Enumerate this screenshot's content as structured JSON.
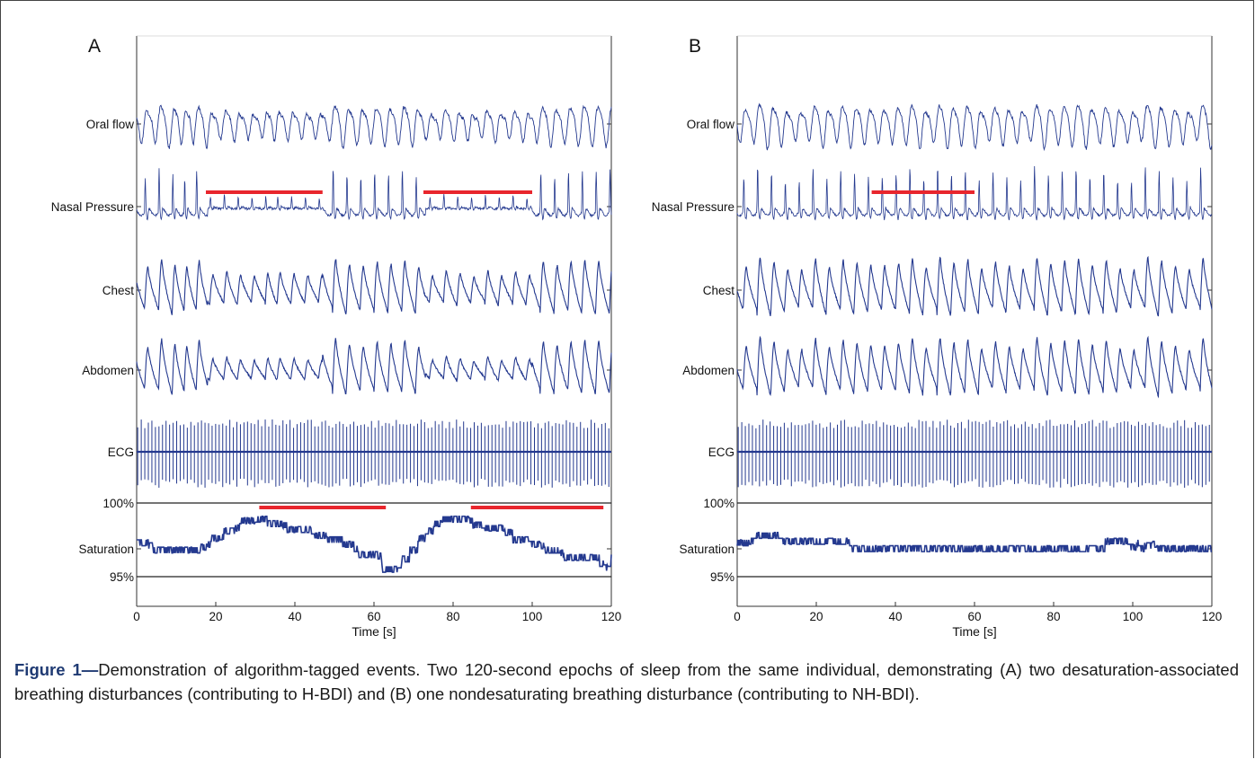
{
  "figure": {
    "caption_label": "Figure 1—",
    "caption_text": "Demonstration of algorithm-tagged events. Two 120-second epochs of sleep from the same individual, demonstrating (A) two desaturation-associated breathing disturbances (contributing to H-BDI) and (B) one nondesaturating breathing disturbance (contributing to NH-BDI).",
    "colors": {
      "signal": "#24398f",
      "event": "#e8262d",
      "axis": "#333333",
      "reference_line": "#222222"
    }
  },
  "chart_data": [
    {
      "type": "line",
      "panel_label": "A",
      "xlabel": "Time [s]",
      "xlim": [
        0,
        120
      ],
      "xticks": [
        0,
        20,
        40,
        60,
        80,
        100,
        120
      ],
      "channels": [
        "Oral flow",
        "Nasal Pressure",
        "Chest",
        "Abdomen",
        "ECG",
        "Saturation"
      ],
      "saturation_labels": {
        "top": "100%",
        "bottom": "95%"
      },
      "nasal_events": [
        {
          "start": 17.5,
          "end": 47
        },
        {
          "start": 72.5,
          "end": 100
        }
      ],
      "saturation_events": [
        {
          "start": 31,
          "end": 63
        },
        {
          "start": 84.5,
          "end": 118
        }
      ],
      "breath_times": [
        2,
        5.5,
        9,
        12,
        15,
        18.5,
        22,
        25.5,
        29,
        32.5,
        35.5,
        39,
        42.5,
        46,
        49.5,
        53,
        56.5,
        60,
        63.5,
        67,
        70.5,
        74,
        77.5,
        81,
        84.5,
        88,
        91.5,
        95,
        98.5,
        102,
        105.5,
        109,
        112.5,
        116,
        119.5
      ],
      "reduced_amplitude_windows": [
        {
          "start": 18,
          "end": 47
        },
        {
          "start": 73,
          "end": 100
        }
      ],
      "saturation_percent": [
        [
          0,
          97.3
        ],
        [
          3,
          97.1
        ],
        [
          4,
          96.8
        ],
        [
          15,
          96.8
        ],
        [
          16,
          97.0
        ],
        [
          18,
          97.2
        ],
        [
          19,
          97.6
        ],
        [
          21,
          97.7
        ],
        [
          22,
          98.1
        ],
        [
          25,
          98.3
        ],
        [
          26,
          98.8
        ],
        [
          30,
          98.9
        ],
        [
          33,
          98.6
        ],
        [
          37,
          98.5
        ],
        [
          38,
          98.2
        ],
        [
          44,
          98.1
        ],
        [
          45,
          97.8
        ],
        [
          48,
          97.5
        ],
        [
          52,
          97.2
        ],
        [
          55,
          96.9
        ],
        [
          56,
          96.5
        ],
        [
          61,
          96.4
        ],
        [
          62,
          95.5
        ],
        [
          66,
          95.4
        ],
        [
          67,
          96.2
        ],
        [
          69,
          96.8
        ],
        [
          71,
          97.6
        ],
        [
          73,
          98.1
        ],
        [
          75,
          98.6
        ],
        [
          77,
          98.9
        ],
        [
          80,
          98.9
        ],
        [
          84,
          98.8
        ],
        [
          85,
          98.5
        ],
        [
          88,
          98.3
        ],
        [
          93,
          98.0
        ],
        [
          95,
          97.5
        ],
        [
          99,
          97.2
        ],
        [
          102,
          97.1
        ],
        [
          103,
          96.8
        ],
        [
          107,
          96.6
        ],
        [
          108,
          96.3
        ],
        [
          117,
          95.9
        ],
        [
          118,
          95.6
        ],
        [
          119,
          95.9
        ],
        [
          120,
          96.3
        ]
      ]
    },
    {
      "type": "line",
      "panel_label": "B",
      "xlabel": "Time [s]",
      "xlim": [
        0,
        120
      ],
      "xticks": [
        0,
        20,
        40,
        60,
        80,
        100,
        120
      ],
      "channels": [
        "Oral flow",
        "Nasal Pressure",
        "Chest",
        "Abdomen",
        "ECG",
        "Saturation"
      ],
      "saturation_labels": {
        "top": "100%",
        "bottom": "95%"
      },
      "nasal_events": [
        {
          "start": 34,
          "end": 60
        }
      ],
      "saturation_events": [],
      "breath_times": [
        1.5,
        5,
        8.5,
        12,
        15.5,
        19,
        22.5,
        26,
        29.5,
        33,
        36.5,
        40,
        43.5,
        47,
        50.5,
        54,
        57.5,
        61,
        64.5,
        68,
        71.5,
        75,
        78.5,
        82,
        85.5,
        89,
        92.5,
        96,
        99.5,
        103,
        106.5,
        110,
        113.5,
        117
      ],
      "reduced_amplitude_windows": [],
      "saturation_percent": [
        [
          0,
          97.3
        ],
        [
          3,
          97.4
        ],
        [
          4,
          97.8
        ],
        [
          10,
          97.8
        ],
        [
          11,
          97.4
        ],
        [
          28,
          97.3
        ],
        [
          29,
          96.9
        ],
        [
          92,
          96.9
        ],
        [
          93,
          97.4
        ],
        [
          98,
          97.4
        ],
        [
          99,
          97.0
        ],
        [
          101,
          97.3
        ],
        [
          102,
          96.9
        ],
        [
          103,
          97.1
        ],
        [
          105,
          97.2
        ],
        [
          106,
          96.9
        ],
        [
          120,
          96.9
        ]
      ]
    }
  ]
}
